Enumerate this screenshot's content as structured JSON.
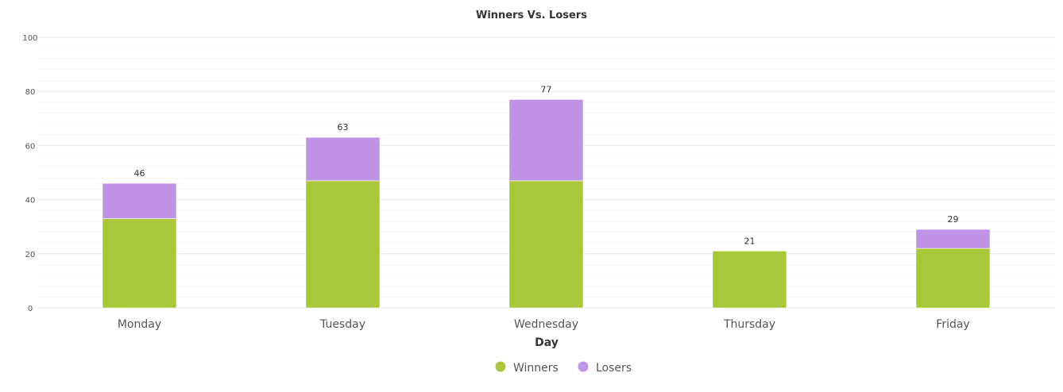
{
  "chart_data": {
    "type": "bar",
    "stacked": true,
    "title": "Winners Vs. Losers",
    "xlabel": "Day",
    "ylabel": "",
    "ylim": [
      0,
      100
    ],
    "yticks": [
      0,
      20,
      40,
      60,
      80,
      100
    ],
    "categories": [
      "Monday",
      "Tuesday",
      "Wednesday",
      "Thursday",
      "Friday"
    ],
    "series": [
      {
        "name": "Winners",
        "color": "#a8c83a",
        "values": [
          33,
          47,
          47,
          21,
          22
        ]
      },
      {
        "name": "Losers",
        "color": "#bf93e6",
        "values": [
          13,
          16,
          30,
          0,
          7
        ]
      }
    ],
    "totals": [
      46,
      63,
      77,
      21,
      29
    ],
    "grid": true,
    "legend": "bottom-center"
  }
}
